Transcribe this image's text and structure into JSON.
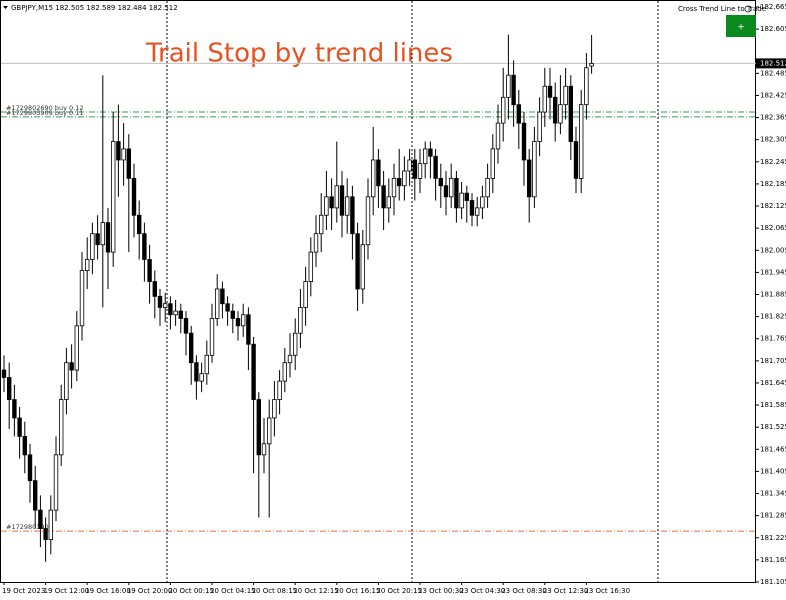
{
  "chart_data": {
    "type": "candlestick",
    "info": "GBPJPY,M15 182.505 182.589 182.484 182.512",
    "title": "Trail Stop by trend lines",
    "panel_label": "Cross Trend Line to Trade",
    "button_label": "+",
    "categories": [
      "19 Oct 2023",
      null,
      null,
      null,
      null,
      null,
      null,
      null,
      "19 Oct 12:00",
      null,
      null,
      null,
      null,
      null,
      null,
      null,
      "19 Oct 16:00",
      null,
      null,
      null,
      null,
      null,
      null,
      null,
      "19 Oct 20:00",
      null,
      null,
      null,
      null,
      null,
      null,
      null,
      "20 Oct 00:15",
      null,
      null,
      null,
      null,
      null,
      null,
      null,
      "20 Oct 04:15",
      null,
      null,
      null,
      null,
      null,
      null,
      null,
      "20 Oct 08:15",
      null,
      null,
      null,
      null,
      null,
      null,
      null,
      "20 Oct 12:15",
      null,
      null,
      null,
      null,
      null,
      null,
      null,
      "20 Oct 16:15",
      null,
      null,
      null,
      null,
      null,
      null,
      null,
      "20 Oct 20:15",
      null,
      null,
      null,
      null,
      null,
      null,
      null,
      "23 Oct 00:30",
      null,
      null,
      null,
      null,
      null,
      null,
      null,
      "23 Oct 04:30",
      null,
      null,
      null,
      null,
      null,
      null,
      null,
      "23 Oct 08:30",
      null,
      null,
      null,
      null,
      null,
      null,
      null,
      "23 Oct 12:30",
      null,
      null,
      null,
      null,
      null,
      null,
      null,
      "23 Oct 16:30",
      null
    ],
    "open": [
      181.68,
      181.66,
      181.6,
      181.55,
      181.5,
      181.45,
      181.38,
      181.3,
      181.25,
      181.22,
      181.3,
      181.45,
      181.6,
      181.7,
      181.68,
      181.8,
      181.95,
      181.98,
      182.05,
      182.02,
      182.08,
      182.0,
      182.3,
      182.25,
      182.28,
      182.2,
      182.1,
      182.05,
      181.98,
      181.92,
      181.88,
      181.85,
      181.86,
      181.83,
      181.84,
      181.82,
      181.78,
      181.7,
      181.65,
      181.67,
      181.72,
      181.82,
      181.9,
      181.86,
      181.84,
      181.82,
      181.8,
      181.83,
      181.75,
      181.6,
      181.45,
      181.48,
      181.55,
      181.6,
      181.65,
      181.7,
      181.72,
      181.78,
      181.85,
      181.92,
      182.0,
      182.05,
      182.1,
      182.15,
      182.12,
      182.18,
      182.1,
      182.15,
      182.05,
      181.9,
      182.02,
      182.15,
      182.25,
      182.18,
      182.12,
      182.15,
      182.2,
      182.18,
      182.22,
      182.25,
      182.2,
      182.24,
      182.28,
      182.26,
      182.2,
      182.18,
      182.15,
      182.2,
      182.12,
      182.16,
      182.14,
      182.1,
      182.12,
      182.15,
      182.2,
      182.28,
      182.35,
      182.42,
      182.48,
      182.4,
      182.35,
      182.25,
      182.15,
      182.3,
      182.38,
      182.45,
      182.42,
      182.35,
      182.4,
      182.45,
      182.3,
      182.2,
      182.4,
      182.505
    ],
    "high": [
      181.72,
      181.7,
      181.64,
      181.58,
      181.54,
      181.48,
      181.42,
      181.34,
      181.28,
      181.34,
      181.5,
      181.64,
      181.74,
      181.75,
      181.84,
      182.0,
      182.04,
      182.08,
      182.1,
      182.48,
      182.12,
      182.38,
      182.4,
      182.35,
      182.32,
      182.24,
      182.14,
      182.08,
      182.02,
      181.95,
      181.9,
      181.89,
      181.88,
      181.87,
      181.86,
      181.84,
      181.8,
      181.72,
      181.7,
      181.76,
      181.86,
      181.94,
      181.92,
      181.88,
      181.86,
      181.84,
      181.86,
      181.85,
      181.77,
      181.62,
      181.55,
      181.6,
      181.65,
      181.68,
      181.74,
      181.78,
      181.82,
      181.9,
      181.96,
      182.04,
      182.1,
      182.16,
      182.22,
      182.2,
      182.3,
      182.22,
      182.2,
      182.18,
      182.08,
      182.06,
      182.2,
      182.34,
      182.28,
      182.22,
      182.2,
      182.24,
      182.28,
      182.26,
      182.28,
      182.28,
      182.28,
      182.3,
      182.3,
      182.28,
      182.24,
      182.22,
      182.24,
      182.22,
      182.19,
      182.18,
      182.16,
      182.15,
      182.18,
      182.24,
      182.32,
      182.4,
      182.5,
      182.59,
      182.52,
      182.44,
      182.38,
      182.28,
      182.34,
      182.42,
      182.5,
      182.5,
      182.46,
      182.48,
      182.5,
      182.48,
      182.34,
      182.44,
      182.54,
      182.589
    ],
    "low": [
      181.62,
      181.52,
      181.5,
      181.44,
      181.4,
      181.32,
      181.25,
      181.2,
      181.16,
      181.18,
      181.27,
      181.42,
      181.56,
      181.63,
      181.65,
      181.76,
      181.9,
      181.94,
      181.98,
      181.85,
      181.9,
      181.96,
      182.15,
      182.18,
      182.0,
      182.04,
      181.98,
      181.92,
      181.86,
      181.82,
      181.8,
      181.81,
      181.79,
      181.8,
      181.78,
      181.72,
      181.64,
      181.6,
      181.62,
      181.64,
      181.7,
      181.8,
      181.82,
      181.8,
      181.78,
      181.76,
      181.77,
      181.68,
      181.4,
      181.28,
      181.4,
      181.28,
      181.5,
      181.56,
      181.62,
      181.66,
      181.68,
      181.74,
      181.8,
      181.88,
      181.96,
      182.0,
      182.06,
      182.06,
      182.08,
      182.04,
      182.05,
      181.98,
      181.84,
      181.86,
      181.98,
      182.1,
      182.12,
      182.06,
      182.08,
      182.1,
      182.14,
      182.14,
      182.18,
      182.14,
      182.16,
      182.2,
      182.2,
      182.14,
      182.12,
      182.1,
      182.12,
      182.08,
      182.09,
      182.08,
      182.07,
      182.07,
      182.09,
      182.12,
      182.16,
      182.24,
      182.3,
      182.36,
      182.34,
      182.28,
      182.18,
      182.08,
      182.12,
      182.26,
      182.34,
      182.36,
      182.3,
      182.32,
      182.36,
      182.25,
      182.16,
      182.16,
      182.36,
      182.484
    ],
    "close": [
      181.66,
      181.6,
      181.55,
      181.5,
      181.45,
      181.38,
      181.3,
      181.25,
      181.22,
      181.3,
      181.45,
      181.6,
      181.7,
      181.68,
      181.8,
      181.95,
      181.98,
      182.05,
      182.02,
      182.08,
      182.0,
      182.3,
      182.25,
      182.28,
      182.2,
      182.1,
      182.05,
      181.98,
      181.92,
      181.88,
      181.85,
      181.86,
      181.83,
      181.84,
      181.82,
      181.78,
      181.7,
      181.65,
      181.67,
      181.72,
      181.82,
      181.9,
      181.86,
      181.84,
      181.82,
      181.8,
      181.83,
      181.75,
      181.6,
      181.45,
      181.48,
      181.55,
      181.6,
      181.65,
      181.7,
      181.72,
      181.78,
      181.85,
      181.92,
      182.0,
      182.05,
      182.1,
      182.15,
      182.12,
      182.18,
      182.1,
      182.15,
      182.05,
      181.9,
      182.02,
      182.15,
      182.25,
      182.18,
      182.12,
      182.15,
      182.2,
      182.18,
      182.22,
      182.25,
      182.2,
      182.24,
      182.28,
      182.26,
      182.2,
      182.18,
      182.15,
      182.2,
      182.12,
      182.16,
      182.14,
      182.1,
      182.12,
      182.15,
      182.2,
      182.28,
      182.35,
      182.42,
      182.48,
      182.4,
      182.35,
      182.25,
      182.15,
      182.3,
      182.38,
      182.45,
      182.42,
      182.35,
      182.4,
      182.45,
      182.3,
      182.2,
      182.4,
      182.5,
      182.512
    ],
    "up_color": "#ffffff",
    "down_color": "#000000",
    "current_price": 182.512,
    "orders": [
      {
        "label": "#1729802690 buy 0.12",
        "price": 182.38,
        "color": "#3a9a5a"
      },
      {
        "label": "#1729803909 buy 0.11",
        "price": 182.367,
        "color": "#3a9a5a"
      },
      {
        "label": "#1729803909",
        "price": 181.243,
        "color": "#e8704a"
      }
    ],
    "ylim": [
      181.105,
      182.665
    ],
    "yticks": [
      182.665,
      182.605,
      182.485,
      182.425,
      182.365,
      182.305,
      182.245,
      182.185,
      182.125,
      182.065,
      182.005,
      181.945,
      181.885,
      181.825,
      181.765,
      181.705,
      181.645,
      181.585,
      181.525,
      181.465,
      181.405,
      181.345,
      181.285,
      181.225,
      181.165,
      181.105
    ]
  }
}
